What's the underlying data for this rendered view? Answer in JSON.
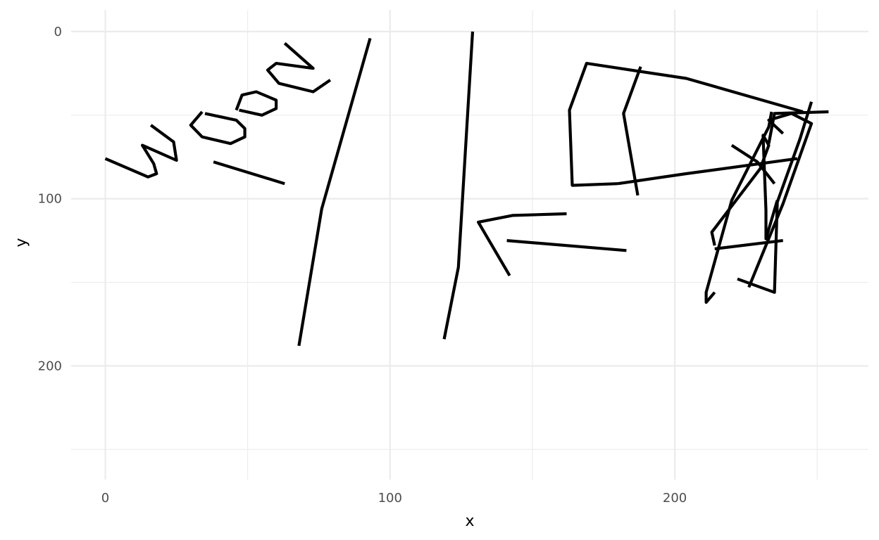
{
  "chart_data": {
    "type": "line",
    "xlabel": "x",
    "ylabel": "y",
    "xlim": [
      -12,
      268
    ],
    "ylim": [
      -13,
      268
    ],
    "y_reversed": true,
    "x_ticks": [
      0,
      100,
      200
    ],
    "y_ticks": [
      0,
      100,
      200
    ],
    "x_tick_labels": [
      "0",
      "100",
      "200"
    ],
    "y_tick_labels": [
      "0",
      "100",
      "200"
    ],
    "grid": true,
    "line_color": "#000000",
    "series": [
      {
        "points": [
          [
            0,
            76
          ],
          [
            15,
            87
          ],
          [
            18,
            85
          ],
          [
            17,
            79
          ],
          [
            13,
            68
          ],
          [
            25,
            77
          ],
          [
            24,
            66
          ],
          [
            16,
            56
          ]
        ]
      },
      {
        "points": [
          [
            34,
            48
          ],
          [
            30,
            56
          ],
          [
            34,
            63
          ],
          [
            44,
            67
          ],
          [
            49,
            63
          ],
          [
            49,
            58
          ],
          [
            46,
            53
          ],
          [
            35,
            49
          ]
        ]
      },
      {
        "points": [
          [
            38,
            78
          ],
          [
            63,
            91
          ]
        ]
      },
      {
        "points": [
          [
            46,
            47
          ],
          [
            48,
            38
          ],
          [
            53,
            36
          ],
          [
            60,
            41
          ],
          [
            60,
            46
          ],
          [
            55,
            50
          ],
          [
            47,
            47
          ]
        ]
      },
      {
        "points": [
          [
            63,
            7
          ],
          [
            73,
            22
          ],
          [
            60,
            19
          ],
          [
            57,
            23
          ],
          [
            61,
            31
          ],
          [
            73,
            36
          ],
          [
            79,
            29
          ]
        ]
      },
      {
        "points": [
          [
            68,
            188
          ],
          [
            76,
            106
          ],
          [
            93,
            4
          ]
        ]
      },
      {
        "points": [
          [
            119,
            184
          ],
          [
            124,
            141
          ],
          [
            129,
            0
          ]
        ]
      },
      {
        "points": [
          [
            142,
            146
          ],
          [
            131,
            114
          ],
          [
            143,
            110
          ],
          [
            162,
            109
          ]
        ]
      },
      {
        "points": [
          [
            141,
            125
          ],
          [
            183,
            131
          ]
        ]
      },
      {
        "points": [
          [
            180,
            91
          ],
          [
            164,
            92
          ],
          [
            163,
            47
          ],
          [
            169,
            19
          ],
          [
            204,
            28
          ],
          [
            245,
            48
          ]
        ]
      },
      {
        "points": [
          [
            187,
            98
          ],
          [
            182,
            49
          ],
          [
            188,
            21
          ]
        ]
      },
      {
        "points": [
          [
            180,
            91
          ],
          [
            204,
            85
          ],
          [
            243,
            76
          ]
        ]
      },
      {
        "points": [
          [
            214,
            156
          ],
          [
            211,
            162
          ],
          [
            211,
            156
          ],
          [
            220,
            101
          ],
          [
            233,
            57
          ],
          [
            234,
            48
          ]
        ]
      },
      {
        "points": [
          [
            222,
            148
          ],
          [
            235,
            156
          ],
          [
            236,
            102
          ],
          [
            244,
            64
          ],
          [
            248,
            42
          ]
        ]
      },
      {
        "points": [
          [
            226,
            153
          ],
          [
            238,
            103
          ],
          [
            248,
            55
          ],
          [
            241,
            49
          ],
          [
            233,
            53
          ],
          [
            238,
            61
          ]
        ]
      },
      {
        "points": [
          [
            220,
            68
          ],
          [
            229,
            78
          ],
          [
            235,
            91
          ]
        ]
      },
      {
        "points": [
          [
            214,
            128
          ],
          [
            213,
            120
          ],
          [
            230,
            82
          ],
          [
            233,
            68
          ],
          [
            231,
            62
          ],
          [
            232,
            107
          ],
          [
            232,
            124
          ],
          [
            236,
            101
          ]
        ]
      },
      {
        "points": [
          [
            214,
            130
          ],
          [
            238,
            125
          ]
        ]
      },
      {
        "points": [
          [
            233,
            67
          ],
          [
            235,
            49
          ],
          [
            254,
            48
          ]
        ]
      }
    ]
  }
}
